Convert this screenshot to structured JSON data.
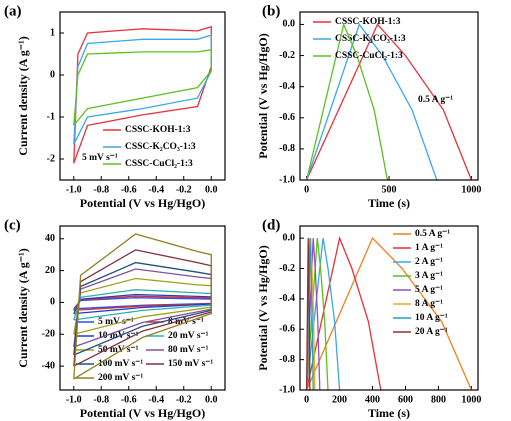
{
  "chart_data": [
    {
      "type": "line",
      "panel_label": "(a)",
      "xlabel": "Potential (V vs Hg/HgO)",
      "ylabel": "Current density (A g⁻¹)",
      "annotation": "5 mV s⁻¹",
      "xlim": [
        -1.1,
        0.1
      ],
      "xticks": [
        {
          "value": -1.0,
          "label": "-1.0"
        },
        -0.8,
        -0.6,
        -0.4,
        -0.2,
        {
          "value": 0.0,
          "label": "0.0"
        }
      ],
      "ylim": [
        -2.5,
        1.5
      ],
      "yticks": [
        -2,
        -1,
        0,
        1
      ],
      "series": [
        {
          "name": "CSSC-KOH-1:3",
          "color": "#e8303a",
          "x": [
            -1,
            -0.97,
            -0.9,
            -0.5,
            -0.1,
            0,
            0,
            -0.1,
            -0.5,
            -0.9,
            -1
          ],
          "values": [
            -2.1,
            0.5,
            1.0,
            1.1,
            1.05,
            1.15,
            0.2,
            -0.75,
            -0.95,
            -1.2,
            -2.1
          ]
        },
        {
          "name": "CSSC-K₂CO₃-1:3",
          "color": "#3aa8e8",
          "x": [
            -1,
            -0.97,
            -0.9,
            -0.5,
            -0.1,
            0,
            0,
            -0.1,
            -0.5,
            -0.9,
            -1
          ],
          "values": [
            -1.65,
            0.2,
            0.75,
            0.85,
            0.85,
            0.95,
            0.1,
            -0.55,
            -0.8,
            -1.0,
            -1.65
          ]
        },
        {
          "name": "CSSC-CuCl₂-1:3",
          "color": "#5cc020",
          "x": [
            -1,
            -0.97,
            -0.9,
            -0.5,
            -0.1,
            0,
            0,
            -0.1,
            -0.5,
            -0.9,
            -1
          ],
          "values": [
            -1.2,
            0.0,
            0.5,
            0.55,
            0.55,
            0.6,
            0.1,
            -0.3,
            -0.55,
            -0.8,
            -1.2
          ]
        }
      ]
    },
    {
      "type": "line",
      "panel_label": "(b)",
      "xlabel": "Time (s)",
      "ylabel": "Potential (V vs Hg/HgO)",
      "annotation": "0.5 A g⁻¹",
      "xlim": [
        -40,
        1040
      ],
      "xticks": [
        0,
        500,
        1000
      ],
      "ylim": [
        -1.0,
        0.08
      ],
      "yticks": [
        {
          "value": -1.0,
          "label": "-1.0"
        },
        -0.8,
        -0.6,
        -0.4,
        -0.2,
        {
          "value": 0.0,
          "label": "0.0"
        }
      ],
      "series": [
        {
          "name": "CSSC-KOH-1:3",
          "color": "#e8303a",
          "x": [
            0,
            430,
            600,
            830,
            1000
          ],
          "values": [
            -1.0,
            0.0,
            -0.2,
            -0.55,
            -1.0
          ]
        },
        {
          "name": "CSSC-K₂CO₃-1:3",
          "color": "#3aa8e8",
          "x": [
            0,
            320,
            460,
            640,
            790
          ],
          "values": [
            -1.0,
            0.0,
            -0.2,
            -0.55,
            -1.0
          ]
        },
        {
          "name": "CSSC-CuCl₂-1:3",
          "color": "#5cc020",
          "x": [
            0,
            225,
            305,
            410,
            490
          ],
          "values": [
            -1.0,
            0.0,
            -0.2,
            -0.55,
            -1.0
          ]
        }
      ]
    },
    {
      "type": "line",
      "panel_label": "(c)",
      "xlabel": "Potential (V vs Hg/HgO)",
      "ylabel": "Current density (A g⁻¹)",
      "xlim": [
        -1.1,
        0.1
      ],
      "xticks": [
        {
          "value": -1.0,
          "label": "-1.0"
        },
        -0.8,
        -0.6,
        -0.4,
        -0.2,
        {
          "value": 0.0,
          "label": "0.0"
        }
      ],
      "ylim": [
        -55,
        48
      ],
      "yticks": [
        -40,
        -20,
        0,
        20,
        40
      ],
      "series": [
        {
          "name": "5 mV s⁻¹",
          "color": "#2050ff",
          "x": [
            -1,
            -0.95,
            -0.55,
            -0.1,
            0,
            0,
            -0.5,
            -1
          ],
          "values": [
            -4,
            1.2,
            3,
            2.3,
            2.1,
            -0.6,
            -1.8,
            -4
          ]
        },
        {
          "name": "8 mV s⁻¹",
          "color": "#e8291c",
          "x": [
            -1,
            -0.95,
            -0.55,
            -0.1,
            0,
            0,
            -0.5,
            -1
          ],
          "values": [
            -5,
            1.6,
            4,
            3,
            2.8,
            -0.8,
            -2.3,
            -5
          ]
        },
        {
          "name": "10 mV s⁻¹",
          "color": "#2040c0",
          "x": [
            -1,
            -0.95,
            -0.55,
            -0.1,
            0,
            0,
            -0.5,
            -1
          ],
          "values": [
            -7,
            2,
            5,
            3.8,
            3.5,
            -1,
            -3.2,
            -7
          ]
        },
        {
          "name": "20 mV s⁻¹",
          "color": "#30b0b0",
          "x": [
            -1,
            -0.95,
            -0.55,
            -0.1,
            0,
            0,
            -0.5,
            -1
          ],
          "values": [
            -11,
            3.2,
            8,
            6,
            5.6,
            -1.7,
            -5,
            -11
          ]
        },
        {
          "name": "50 mV s⁻¹",
          "color": "#a0a020",
          "x": [
            -1,
            -0.95,
            -0.55,
            -0.1,
            0,
            0,
            -0.5,
            -1
          ],
          "values": [
            -20,
            6,
            15,
            11,
            10.5,
            -3,
            -9,
            -20
          ]
        },
        {
          "name": "80 mV s⁻¹",
          "color": "#8050a0",
          "x": [
            -1,
            -0.95,
            -0.55,
            -0.1,
            0,
            0,
            -0.5,
            -1
          ],
          "values": [
            -28,
            8.4,
            21,
            16,
            15,
            -4.2,
            -12.6,
            -28
          ]
        },
        {
          "name": "100 mV s⁻¹",
          "color": "#205080",
          "x": [
            -1,
            -0.95,
            -0.55,
            -0.1,
            0,
            0,
            -0.5,
            -1
          ],
          "values": [
            -33,
            10,
            25,
            19,
            17.5,
            -5,
            -15,
            -33
          ]
        },
        {
          "name": "150 mV s⁻¹",
          "color": "#803040",
          "x": [
            -1,
            -0.95,
            -0.55,
            -0.1,
            0,
            0,
            -0.5,
            -1
          ],
          "values": [
            -40,
            13,
            33,
            25,
            23,
            -6,
            -18,
            -40
          ]
        },
        {
          "name": "200 mV s⁻¹",
          "color": "#908020",
          "x": [
            -1,
            -0.95,
            -0.55,
            -0.1,
            0,
            0,
            -0.5,
            -1
          ],
          "values": [
            -48,
            17,
            43,
            32,
            30,
            -7,
            -22,
            -48
          ]
        }
      ]
    },
    {
      "type": "line",
      "panel_label": "(d)",
      "xlabel": "Time (s)",
      "ylabel": "Potential (V vs Hg/HgO)",
      "xlim": [
        -40,
        1040
      ],
      "xticks": [
        0,
        200,
        400,
        600,
        800,
        1000
      ],
      "ylim": [
        -1.0,
        0.08
      ],
      "yticks": [
        {
          "value": -1.0,
          "label": "-1.0"
        },
        -0.8,
        -0.6,
        -0.4,
        -0.2,
        {
          "value": 0.0,
          "label": "0.0"
        }
      ],
      "series": [
        {
          "name": "0.5 A g⁻¹",
          "color": "#f08020",
          "x": [
            0,
            400,
            580,
            820,
            1000
          ],
          "values": [
            -1.0,
            0.0,
            -0.2,
            -0.55,
            -1.0
          ]
        },
        {
          "name": "1 A g⁻¹",
          "color": "#e8303a",
          "x": [
            0,
            200,
            275,
            375,
            450
          ],
          "values": [
            -1.0,
            0.0,
            -0.2,
            -0.55,
            -1.0
          ]
        },
        {
          "name": "2 A g⁻¹",
          "color": "#3aa8e8",
          "x": [
            0,
            100,
            130,
            170,
            200
          ],
          "values": [
            -1.0,
            0.0,
            -0.2,
            -0.55,
            -1.0
          ]
        },
        {
          "name": "3 A g⁻¹",
          "color": "#5cc020",
          "x": [
            0,
            65,
            85,
            110,
            130
          ],
          "values": [
            -1.0,
            0.0,
            -0.2,
            -0.55,
            -1.0
          ]
        },
        {
          "name": "5 A g⁻¹",
          "color": "#9050c0",
          "x": [
            0,
            40,
            52,
            68,
            80
          ],
          "values": [
            -1.0,
            0.0,
            -0.2,
            -0.55,
            -1.0
          ]
        },
        {
          "name": "8 A g⁻¹",
          "color": "#e0b020",
          "x": [
            0,
            25,
            33,
            43,
            50
          ],
          "values": [
            -1.0,
            0.0,
            -0.2,
            -0.55,
            -1.0
          ]
        },
        {
          "name": "10 A g⁻¹",
          "color": "#20a0c0",
          "x": [
            0,
            20,
            26,
            34,
            40
          ],
          "values": [
            -1.0,
            0.0,
            -0.2,
            -0.55,
            -1.0
          ]
        },
        {
          "name": "20 A g⁻¹",
          "color": "#903030",
          "x": [
            0,
            10,
            13,
            17,
            20
          ],
          "values": [
            -1.0,
            0.0,
            -0.2,
            -0.55,
            -1.0
          ]
        }
      ]
    }
  ]
}
